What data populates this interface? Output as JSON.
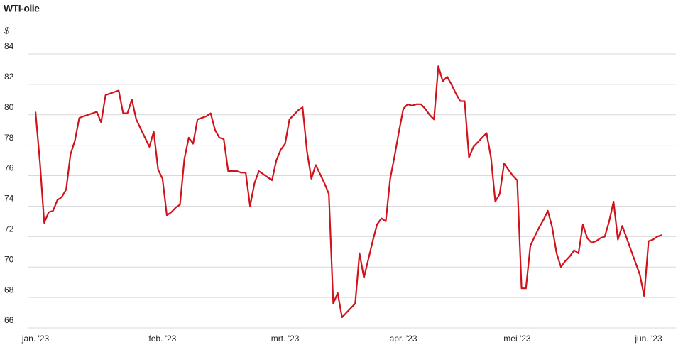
{
  "chart_data": {
    "type": "line",
    "title": "WTI-olie",
    "y_label": "$",
    "categories": [
      "jan. '23",
      null,
      null,
      null,
      null,
      null,
      null,
      null,
      null,
      null,
      null,
      null,
      null,
      null,
      null,
      null,
      null,
      null,
      null,
      null,
      null,
      null,
      null,
      null,
      null,
      null,
      null,
      null,
      null,
      "feb. '23",
      null,
      null,
      null,
      null,
      null,
      null,
      null,
      null,
      null,
      null,
      null,
      null,
      null,
      null,
      null,
      null,
      null,
      null,
      null,
      null,
      null,
      null,
      null,
      null,
      null,
      null,
      null,
      "mrt. '23",
      null,
      null,
      null,
      null,
      null,
      null,
      null,
      null,
      null,
      null,
      null,
      null,
      null,
      null,
      null,
      null,
      null,
      null,
      null,
      null,
      null,
      null,
      null,
      null,
      null,
      null,
      "apr. '23",
      null,
      null,
      null,
      null,
      null,
      null,
      null,
      null,
      null,
      null,
      null,
      null,
      null,
      null,
      null,
      null,
      null,
      null,
      null,
      null,
      null,
      null,
      null,
      null,
      null,
      "mei '23",
      null,
      null,
      null,
      null,
      null,
      null,
      null,
      null,
      null,
      null,
      null,
      null,
      null,
      null,
      null,
      null,
      null,
      null,
      null,
      null,
      null,
      null,
      null,
      null,
      null,
      null,
      null,
      null,
      null,
      "jun. '23",
      null,
      null,
      null
    ],
    "series": [
      {
        "name": "WTI-olie",
        "color": "#d0121b",
        "values": [
          80.2,
          76.9,
          72.9,
          73.6,
          73.7,
          74.4,
          74.6,
          75.1,
          77.4,
          78.3,
          79.8,
          79.9,
          80.0,
          80.1,
          80.2,
          79.5,
          81.3,
          81.4,
          81.5,
          81.6,
          80.1,
          80.1,
          81.0,
          79.7,
          79.1,
          78.5,
          77.9,
          78.9,
          76.4,
          75.8,
          73.4,
          73.6,
          73.9,
          74.1,
          77.1,
          78.5,
          78.1,
          79.7,
          79.8,
          79.9,
          80.1,
          79.0,
          78.5,
          78.4,
          76.3,
          76.3,
          76.3,
          76.2,
          76.2,
          74.0,
          75.5,
          76.3,
          76.1,
          75.9,
          75.7,
          77.0,
          77.7,
          78.1,
          79.7,
          80.0,
          80.3,
          80.5,
          77.6,
          75.8,
          76.7,
          76.1,
          75.5,
          74.8,
          67.6,
          68.3,
          66.7,
          67.0,
          67.3,
          67.6,
          70.9,
          69.3,
          70.5,
          71.7,
          72.8,
          73.2,
          73.0,
          75.8,
          77.3,
          78.9,
          80.4,
          80.7,
          80.6,
          80.7,
          80.7,
          80.4,
          80.0,
          79.7,
          83.2,
          82.2,
          82.5,
          82.0,
          81.4,
          80.9,
          80.9,
          77.2,
          77.9,
          78.2,
          78.5,
          78.8,
          77.2,
          74.3,
          74.8,
          76.8,
          76.4,
          76.0,
          75.7,
          68.6,
          68.6,
          71.4,
          72.0,
          72.6,
          73.1,
          73.7,
          72.6,
          70.9,
          70.0,
          70.4,
          70.7,
          71.1,
          70.9,
          72.8,
          71.9,
          71.6,
          71.7,
          71.9,
          72.0,
          73.0,
          74.3,
          71.8,
          72.7,
          71.9,
          71.1,
          70.3,
          69.5,
          68.1,
          71.7,
          71.8,
          72.0,
          72.1
        ]
      }
    ],
    "ylim": [
      66,
      84
    ],
    "yticks": [
      66,
      68,
      70,
      72,
      74,
      76,
      78,
      80,
      82,
      84
    ],
    "grid": true
  }
}
